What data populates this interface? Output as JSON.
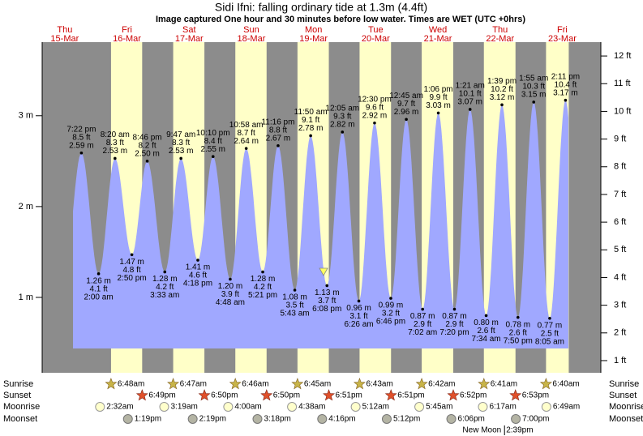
{
  "chart_data": {
    "type": "tide",
    "title": "Sidi Ifni: falling  ordinary tide at 1.3m (4.4ft)",
    "subtitle": "Image captured One hour and 30 minutes before low water. Times are WET (UTC +0hrs)",
    "colors": {
      "night": "#8c8c8c",
      "day": "#ffffc8",
      "water": "#a0a8ff"
    },
    "days": [
      {
        "name": "Thu",
        "date": "15-Mar"
      },
      {
        "name": "Fri",
        "date": "16-Mar"
      },
      {
        "name": "Sat",
        "date": "17-Mar"
      },
      {
        "name": "Sun",
        "date": "18-Mar"
      },
      {
        "name": "Mon",
        "date": "19-Mar"
      },
      {
        "name": "Tue",
        "date": "20-Mar"
      },
      {
        "name": "Wed",
        "date": "21-Mar"
      },
      {
        "name": "Thu",
        "date": "22-Mar"
      },
      {
        "name": "Fri",
        "date": "23-Mar"
      }
    ],
    "ylim": [
      0.17,
      3.81
    ],
    "yticks": [
      {
        "value": 1,
        "label": "1 m"
      },
      {
        "value": 2,
        "label": "2 m"
      },
      {
        "value": 3,
        "label": "3 m"
      }
    ],
    "y2lim": [
      0.56,
      12.5
    ],
    "y2ticks": [
      {
        "value": 1,
        "label": "1 ft"
      },
      {
        "value": 2,
        "label": "2 ft"
      },
      {
        "value": 3,
        "label": "3 ft"
      },
      {
        "value": 4,
        "label": "4 ft"
      },
      {
        "value": 5,
        "label": "5 ft"
      },
      {
        "value": 6,
        "label": "6 ft"
      },
      {
        "value": 7,
        "label": "7 ft"
      },
      {
        "value": 8,
        "label": "8 ft"
      },
      {
        "value": 9,
        "label": "9 ft"
      },
      {
        "value": 10,
        "label": "10 ft"
      },
      {
        "value": 11,
        "label": "11 ft"
      },
      {
        "value": 12,
        "label": "12 ft"
      }
    ],
    "extremes": [
      {
        "kind": "high",
        "time": "7:22 pm",
        "m": 2.59,
        "m_label": "2.59 m",
        "ft_label": "8.5 ft"
      },
      {
        "kind": "low",
        "time": "2:00 am",
        "m": 1.26,
        "m_label": "1.26 m",
        "ft_label": "4.1 ft"
      },
      {
        "kind": "high",
        "time": "8:20 am",
        "m": 2.53,
        "m_label": "2.53 m",
        "ft_label": "8.3 ft"
      },
      {
        "kind": "low",
        "time": "2:50 pm",
        "m": 1.47,
        "m_label": "1.47 m",
        "ft_label": "4.8 ft"
      },
      {
        "kind": "high",
        "time": "8:46 pm",
        "m": 2.5,
        "m_label": "2.50 m",
        "ft_label": "8.2 ft"
      },
      {
        "kind": "low",
        "time": "3:33 am",
        "m": 1.28,
        "m_label": "1.28 m",
        "ft_label": "4.2 ft"
      },
      {
        "kind": "high",
        "time": "9:47 am",
        "m": 2.53,
        "m_label": "2.53 m",
        "ft_label": "8.3 ft"
      },
      {
        "kind": "low",
        "time": "4:18 pm",
        "m": 1.41,
        "m_label": "1.41 m",
        "ft_label": "4.6 ft"
      },
      {
        "kind": "high",
        "time": "10:10 pm",
        "m": 2.55,
        "m_label": "2.55 m",
        "ft_label": "8.4 ft"
      },
      {
        "kind": "low",
        "time": "4:48 am",
        "m": 1.2,
        "m_label": "1.20 m",
        "ft_label": "3.9 ft"
      },
      {
        "kind": "high",
        "time": "10:58 am",
        "m": 2.64,
        "m_label": "2.64 m",
        "ft_label": "8.7 ft"
      },
      {
        "kind": "low",
        "time": "5:21 pm",
        "m": 1.28,
        "m_label": "1.28 m",
        "ft_label": "4.2 ft"
      },
      {
        "kind": "high",
        "time": "11:16 pm",
        "m": 2.67,
        "m_label": "2.67 m",
        "ft_label": "8.8 ft"
      },
      {
        "kind": "low",
        "time": "5:43 am",
        "m": 1.08,
        "m_label": "1.08 m",
        "ft_label": "3.5 ft"
      },
      {
        "kind": "high",
        "time": "11:50 am",
        "m": 2.78,
        "m_label": "2.78 m",
        "ft_label": "9.1 ft"
      },
      {
        "kind": "low",
        "time": "6:08 pm",
        "m": 1.13,
        "m_label": "1.13 m",
        "ft_label": "3.7 ft"
      },
      {
        "kind": "high",
        "time": "12:05 am",
        "m": 2.82,
        "m_label": "2.82 m",
        "ft_label": "9.3 ft"
      },
      {
        "kind": "low",
        "time": "6:26 am",
        "m": 0.96,
        "m_label": "0.96 m",
        "ft_label": "3.1 ft"
      },
      {
        "kind": "high",
        "time": "12:30 pm",
        "m": 2.92,
        "m_label": "2.92 m",
        "ft_label": "9.6 ft"
      },
      {
        "kind": "low",
        "time": "6:46 pm",
        "m": 0.99,
        "m_label": "0.99 m",
        "ft_label": "3.2 ft"
      },
      {
        "kind": "high",
        "time": "12:45 am",
        "m": 2.96,
        "m_label": "2.96 m",
        "ft_label": "9.7 ft"
      },
      {
        "kind": "low",
        "time": "7:02 am",
        "m": 0.87,
        "m_label": "0.87 m",
        "ft_label": "2.9 ft"
      },
      {
        "kind": "high",
        "time": "1:06 pm",
        "m": 3.03,
        "m_label": "3.03 m",
        "ft_label": "9.9 ft"
      },
      {
        "kind": "low",
        "time": "7:20 pm",
        "m": 0.87,
        "m_label": "0.87 m",
        "ft_label": "2.9 ft"
      },
      {
        "kind": "high",
        "time": "1:21 am",
        "m": 3.07,
        "m_label": "3.07 m",
        "ft_label": "10.1 ft"
      },
      {
        "kind": "low",
        "time": "7:34 am",
        "m": 0.8,
        "m_label": "0.80 m",
        "ft_label": "2.6 ft"
      },
      {
        "kind": "high",
        "time": "1:39 pm",
        "m": 3.12,
        "m_label": "3.12 m",
        "ft_label": "10.2 ft"
      },
      {
        "kind": "low",
        "time": "7:50 pm",
        "m": 0.78,
        "m_label": "0.78 m",
        "ft_label": "2.6 ft"
      },
      {
        "kind": "high",
        "time": "1:55 am",
        "m": 3.15,
        "m_label": "3.15 m",
        "ft_label": "10.3 ft"
      },
      {
        "kind": "low",
        "time": "8:05 am",
        "m": 0.77,
        "m_label": "0.77 m",
        "ft_label": "2.5 ft"
      },
      {
        "kind": "high",
        "time": "2:11 pm",
        "m": 3.17,
        "m_label": "3.17 m",
        "ft_label": "10.4 ft"
      }
    ],
    "rows": {
      "sunrise": "Sunrise",
      "sunset": "Sunset",
      "moonrise": "Moonrise",
      "moonset": "Moonset"
    },
    "sunrise": [
      "6:48am",
      "6:47am",
      "6:46am",
      "6:45am",
      "6:43am",
      "6:42am",
      "6:41am",
      "6:40am"
    ],
    "sunset": [
      "6:49pm",
      "6:50pm",
      "6:50pm",
      "6:51pm",
      "6:51pm",
      "6:52pm",
      "6:53pm"
    ],
    "moonrise": [
      "2:32am",
      "3:19am",
      "4:00am",
      "4:38am",
      "5:12am",
      "5:45am",
      "6:17am",
      "6:49am"
    ],
    "moonset": [
      "1:19pm",
      "2:19pm",
      "3:18pm",
      "4:16pm",
      "5:12pm",
      "6:06pm",
      "7:00pm"
    ],
    "moon_phase": {
      "name": "New Moon",
      "time": "2:39pm",
      "day": "22-Mar"
    }
  }
}
